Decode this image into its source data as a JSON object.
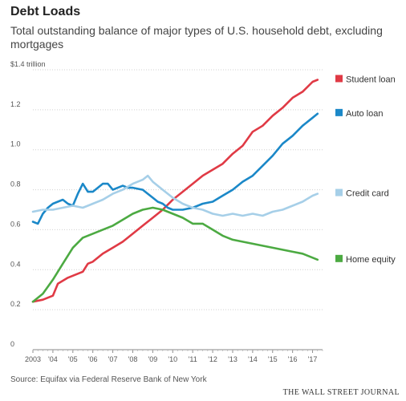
{
  "header": {
    "title": "Debt Loads",
    "subtitle": "Total outstanding balance of major types of U.S. household debt, excluding mortgages"
  },
  "footer": {
    "source": "Source: Equifax via Federal Reserve Bank of New York",
    "credit": "THE WALL STREET JOURNAL"
  },
  "chart_data": {
    "type": "line",
    "title": "Debt Loads",
    "subtitle": "Total outstanding balance of major types of U.S. household debt, excluding mortgages",
    "x_unit": "year",
    "xlim": [
      2003,
      2017.5
    ],
    "ylim": [
      0,
      1.4
    ],
    "y_ticks": [
      {
        "value": 0,
        "label": "0"
      },
      {
        "value": 0.2,
        "label": "0.2"
      },
      {
        "value": 0.4,
        "label": "0.4"
      },
      {
        "value": 0.6,
        "label": "0.6"
      },
      {
        "value": 0.8,
        "label": "0.8"
      },
      {
        "value": 1.0,
        "label": "1.0"
      },
      {
        "value": 1.2,
        "label": "1.2"
      },
      {
        "value": 1.4,
        "label": "$1.4 trillion"
      }
    ],
    "x_ticks": [
      {
        "value": 2003,
        "label": "2003"
      },
      {
        "value": 2004,
        "label": "'04"
      },
      {
        "value": 2005,
        "label": "'05"
      },
      {
        "value": 2006,
        "label": "'06"
      },
      {
        "value": 2007,
        "label": "'07"
      },
      {
        "value": 2008,
        "label": "'08"
      },
      {
        "value": 2009,
        "label": "'09"
      },
      {
        "value": 2010,
        "label": "'10"
      },
      {
        "value": 2011,
        "label": "'11"
      },
      {
        "value": 2012,
        "label": "'12"
      },
      {
        "value": 2013,
        "label": "'13"
      },
      {
        "value": 2014,
        "label": "'14"
      },
      {
        "value": 2015,
        "label": "'15"
      },
      {
        "value": 2016,
        "label": "'16"
      },
      {
        "value": 2017,
        "label": "'17"
      }
    ],
    "grid": true,
    "legend": "right-end labels",
    "series": [
      {
        "name": "Student loan",
        "color": "#e03a45",
        "x": [
          2003,
          2003.5,
          2004,
          2004.25,
          2004.75,
          2005,
          2005.5,
          2005.75,
          2006,
          2006.5,
          2007,
          2007.5,
          2008,
          2008.5,
          2009,
          2009.5,
          2010,
          2010.5,
          2011,
          2011.5,
          2012,
          2012.5,
          2013,
          2013.5,
          2014,
          2014.5,
          2015,
          2015.5,
          2016,
          2016.5,
          2017,
          2017.25
        ],
        "y": [
          0.24,
          0.25,
          0.27,
          0.33,
          0.36,
          0.37,
          0.39,
          0.43,
          0.44,
          0.48,
          0.51,
          0.54,
          0.58,
          0.62,
          0.66,
          0.7,
          0.75,
          0.79,
          0.83,
          0.87,
          0.9,
          0.93,
          0.98,
          1.02,
          1.09,
          1.12,
          1.17,
          1.21,
          1.26,
          1.29,
          1.34,
          1.35
        ]
      },
      {
        "name": "Auto loan",
        "color": "#1b88c8",
        "x": [
          2003,
          2003.25,
          2003.5,
          2003.75,
          2004,
          2004.5,
          2004.75,
          2005,
          2005.25,
          2005.5,
          2005.75,
          2006,
          2006.5,
          2006.75,
          2007,
          2007.25,
          2007.5,
          2007.75,
          2008,
          2008.5,
          2008.75,
          2009,
          2009.25,
          2009.5,
          2009.75,
          2010,
          2010.5,
          2011,
          2011.5,
          2012,
          2012.5,
          2013,
          2013.5,
          2014,
          2014.5,
          2015,
          2015.5,
          2016,
          2016.5,
          2017,
          2017.25
        ],
        "y": [
          0.64,
          0.63,
          0.68,
          0.71,
          0.73,
          0.75,
          0.73,
          0.72,
          0.78,
          0.83,
          0.79,
          0.79,
          0.83,
          0.83,
          0.8,
          0.81,
          0.82,
          0.81,
          0.81,
          0.8,
          0.78,
          0.76,
          0.74,
          0.73,
          0.71,
          0.7,
          0.7,
          0.71,
          0.73,
          0.74,
          0.77,
          0.8,
          0.84,
          0.87,
          0.92,
          0.97,
          1.03,
          1.07,
          1.12,
          1.16,
          1.18
        ]
      },
      {
        "name": "Credit card",
        "color": "#a6cfe8",
        "x": [
          2003,
          2003.5,
          2004,
          2004.5,
          2005,
          2005.5,
          2006,
          2006.5,
          2007,
          2007.5,
          2008,
          2008.5,
          2008.75,
          2009,
          2009.5,
          2010,
          2010.5,
          2011,
          2011.5,
          2012,
          2012.5,
          2013,
          2013.5,
          2014,
          2014.5,
          2015,
          2015.5,
          2016,
          2016.5,
          2017,
          2017.25
        ],
        "y": [
          0.69,
          0.7,
          0.7,
          0.71,
          0.72,
          0.71,
          0.73,
          0.75,
          0.78,
          0.8,
          0.83,
          0.85,
          0.87,
          0.84,
          0.8,
          0.76,
          0.73,
          0.71,
          0.7,
          0.68,
          0.67,
          0.68,
          0.67,
          0.68,
          0.67,
          0.69,
          0.7,
          0.72,
          0.74,
          0.77,
          0.78
        ]
      },
      {
        "name": "Home equity",
        "color": "#4caa42",
        "x": [
          2003,
          2003.5,
          2004,
          2004.5,
          2005,
          2005.5,
          2006,
          2006.5,
          2007,
          2007.5,
          2008,
          2008.5,
          2009,
          2009.5,
          2010,
          2010.5,
          2011,
          2011.5,
          2012,
          2012.5,
          2013,
          2013.5,
          2014,
          2014.5,
          2015,
          2015.5,
          2016,
          2016.5,
          2017,
          2017.25
        ],
        "y": [
          0.24,
          0.28,
          0.35,
          0.43,
          0.51,
          0.56,
          0.58,
          0.6,
          0.62,
          0.65,
          0.68,
          0.7,
          0.71,
          0.7,
          0.68,
          0.66,
          0.63,
          0.63,
          0.6,
          0.57,
          0.55,
          0.54,
          0.53,
          0.52,
          0.51,
          0.5,
          0.49,
          0.48,
          0.46,
          0.45
        ]
      }
    ]
  }
}
